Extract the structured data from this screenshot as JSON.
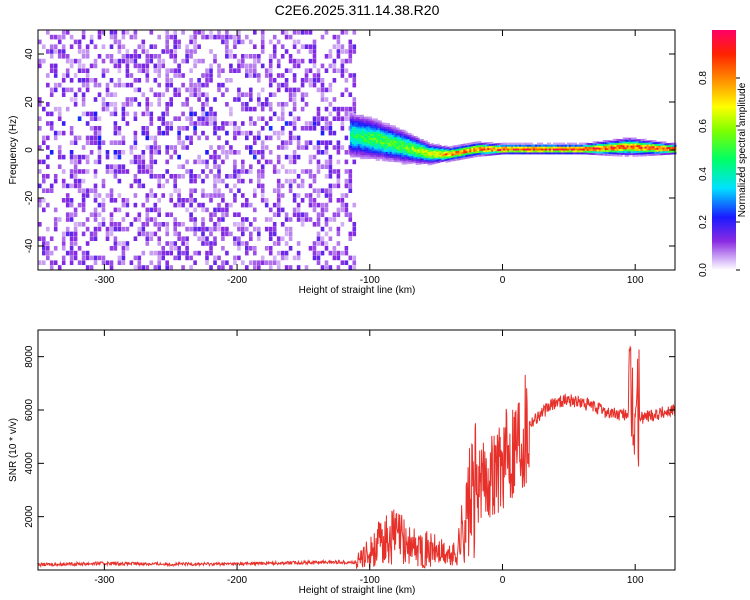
{
  "title": "C2E6.2025.311.14.38.R20",
  "colors": {
    "line": "#e8302a",
    "background": "#ffffff",
    "axis": "#000000"
  },
  "chart_data": [
    {
      "type": "heatmap",
      "xlabel": "Height of straight line (km)",
      "ylabel": "Frequency (Hz)",
      "xlim": [
        -350,
        130
      ],
      "ylim": [
        -50,
        50
      ],
      "xticks": [
        -300,
        -200,
        -100,
        0,
        100
      ],
      "yticks": [
        -40,
        -20,
        0,
        20,
        40
      ],
      "grid": false,
      "noise_region_x": [
        -350,
        -112
      ],
      "signal_band": [
        {
          "x": -115,
          "freq_center": 6,
          "freq_halfwidth": 7,
          "amplitude": 0.45
        },
        {
          "x": -95,
          "freq_center": 4,
          "freq_halfwidth": 6,
          "amplitude": 0.55
        },
        {
          "x": -75,
          "freq_center": 1,
          "freq_halfwidth": 5,
          "amplitude": 0.55
        },
        {
          "x": -55,
          "freq_center": -2,
          "freq_halfwidth": 3,
          "amplitude": 0.7
        },
        {
          "x": -40,
          "freq_center": -2,
          "freq_halfwidth": 2,
          "amplitude": 0.85
        },
        {
          "x": -20,
          "freq_center": 0,
          "freq_halfwidth": 2,
          "amplitude": 0.85
        },
        {
          "x": 0,
          "freq_center": 0,
          "freq_halfwidth": 1.5,
          "amplitude": 0.95
        },
        {
          "x": 60,
          "freq_center": 0,
          "freq_halfwidth": 1.5,
          "amplitude": 0.95
        },
        {
          "x": 95,
          "freq_center": 1,
          "freq_halfwidth": 2.5,
          "amplitude": 0.9
        },
        {
          "x": 130,
          "freq_center": 0,
          "freq_halfwidth": 1.5,
          "amplitude": 0.95
        }
      ],
      "colorbar": {
        "label": "Normalized spectral amplitude",
        "range": [
          0,
          1
        ],
        "ticks": [
          "0.0",
          "0.2",
          "0.4",
          "0.6",
          "0.8"
        ]
      }
    },
    {
      "type": "line",
      "xlabel": "Height of straight line (km)",
      "ylabel": "SNR (10 * v/v)",
      "xlim": [
        -350,
        130
      ],
      "ylim": [
        0,
        9000
      ],
      "xticks": [
        -300,
        -200,
        -100,
        0,
        100
      ],
      "yticks": [
        2000,
        4000,
        6000,
        8000
      ],
      "grid": false,
      "series": [
        {
          "x": [
            -350,
            -300,
            -250,
            -200,
            -150,
            -125,
            -110,
            -100,
            -90,
            -80,
            -70,
            -60,
            -50,
            -40,
            -35,
            -30,
            -25,
            -20,
            -15,
            -10,
            -5,
            0,
            5,
            10,
            15,
            20,
            30,
            40,
            50,
            60,
            70,
            80,
            90,
            95,
            100,
            105,
            110,
            120,
            130
          ],
          "values": [
            200,
            250,
            220,
            230,
            280,
            300,
            280,
            700,
            1100,
            1300,
            900,
            800,
            700,
            500,
            600,
            1500,
            2400,
            3000,
            3300,
            3500,
            3800,
            4000,
            4400,
            4900,
            5300,
            5500,
            5900,
            6300,
            6400,
            6250,
            6100,
            5900,
            5800,
            5900,
            6000,
            5700,
            5800,
            5900,
            6000
          ]
        }
      ]
    }
  ]
}
